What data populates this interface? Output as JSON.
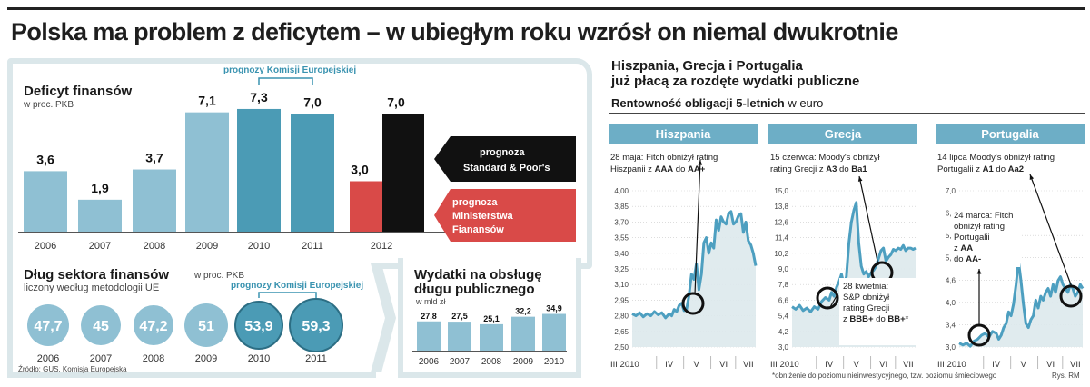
{
  "headline": "Polska ma problem z deficytem – w ubiegłym roku wzrósł on niemal dwukrotnie",
  "deficit": {
    "title": "Deficyt finansów",
    "unit": "w proc. PKB",
    "forecast_label": "prognozy Komisji Europejskiej",
    "legend_sp": [
      "prognoza",
      "Standard & Poor's"
    ],
    "legend_min": [
      "prognoza",
      "Ministerstwa",
      "Fianansów"
    ]
  },
  "debt": {
    "title": "Dług sektora finansów",
    "subtitle": "liczony według metodologii UE",
    "unit": "w proc. PKB",
    "forecast_label": "prognozy Komisji Europejskiej"
  },
  "spend": {
    "title_line1": "Wydatki na obsługę",
    "title_line2": "długu publicznego",
    "unit": "w mld zł"
  },
  "source": "Źródło: GUS, Komisja Europejska",
  "right": {
    "title_line1": "Hiszpania, Grecja i Portugalia",
    "title_line2": "już płacą za rozdęte wydatki publiczne",
    "subtitle_bold": "Rentowność obligacji 5-letnich",
    "subtitle_rest": " w euro"
  },
  "footnote": "*obniżenie do poziomu nieinwestycyjnego, tzw. poziomu śmieciowego",
  "credit": "Rys. RM",
  "colors": {
    "light_blue": "#8fc0d3",
    "ke_blue": "#4b9bb5",
    "black": "#111111",
    "red": "#d94a48",
    "panel_bg": "#dbe7ea",
    "header_blue": "#6daec6"
  },
  "chart_data": [
    {
      "type": "bar",
      "title": "Deficyt finansów",
      "ylabel": "w proc. PKB",
      "categories": [
        "2006",
        "2007",
        "2008",
        "2009",
        "2010",
        "2011",
        "2012"
      ],
      "series": [
        {
          "values": [
            3.6,
            1.9,
            3.7,
            7.1,
            null,
            null,
            null
          ]
        },
        {
          "name": "prognozy Komisji Europejskiej",
          "values": [
            null,
            null,
            null,
            null,
            7.3,
            7.0,
            null
          ]
        },
        {
          "name": "prognoza Ministerstwa Fianansów",
          "values": [
            null,
            null,
            null,
            null,
            null,
            null,
            3.0
          ]
        },
        {
          "name": "prognoza Standard & Poor's",
          "values": [
            null,
            null,
            null,
            null,
            null,
            null,
            7.0
          ]
        }
      ],
      "labels": [
        "3,6",
        "1,9",
        "3,7",
        "7,1",
        "7,3",
        "7,0",
        "3,0",
        "7,0"
      ]
    },
    {
      "type": "bubble",
      "title": "Dług sektora finansów",
      "ylabel": "w proc. PKB",
      "categories": [
        "2006",
        "2007",
        "2008",
        "2009",
        "2010",
        "2011"
      ],
      "values": [
        47.7,
        45,
        47.2,
        51,
        53.9,
        59.3
      ],
      "labels": [
        "47,7",
        "45",
        "47,2",
        "51",
        "53,9",
        "59,3"
      ]
    },
    {
      "type": "bar",
      "title": "Wydatki na obsługę długu publicznego",
      "ylabel": "w mld zł",
      "categories": [
        "2006",
        "2007",
        "2008",
        "2009",
        "2010"
      ],
      "values": [
        27.8,
        27.5,
        25.1,
        32.2,
        34.9
      ],
      "labels": [
        "27,8",
        "27,5",
        "25,1",
        "32,2",
        "34,9"
      ]
    },
    {
      "type": "line",
      "title": "Hiszpania",
      "yticks": [
        "4,00",
        "3,85",
        "3,70",
        "3,55",
        "3,40",
        "3,25",
        "3,10",
        "2,95",
        "2,80",
        "2,65",
        "2,50"
      ],
      "ylim": [
        2.5,
        4.0
      ],
      "xticks": [
        "III 2010",
        "IV",
        "V",
        "VI",
        "VII"
      ],
      "annotation": {
        "before": "28 maja: Fitch obniżył rating",
        "line2": "Hiszpanii z ",
        "from": "AAA",
        "mid": " do ",
        "to": "AA+"
      },
      "x": [
        0,
        3,
        6,
        9,
        12,
        15,
        18,
        21,
        24,
        27,
        30,
        32,
        34,
        36,
        38,
        40,
        42,
        44,
        46,
        48,
        50,
        52,
        54,
        56,
        58,
        60,
        62,
        64,
        66,
        68,
        70,
        72,
        74,
        76,
        78,
        80,
        82,
        84,
        86,
        88,
        90,
        92,
        94,
        96,
        98,
        100
      ],
      "values": [
        2.82,
        2.8,
        2.83,
        2.79,
        2.82,
        2.8,
        2.84,
        2.81,
        2.83,
        2.78,
        2.82,
        2.8,
        2.86,
        2.84,
        2.9,
        2.92,
        2.85,
        2.86,
        3.0,
        3.2,
        3.15,
        3.3,
        3.05,
        3.2,
        3.5,
        3.55,
        3.4,
        3.5,
        3.45,
        3.72,
        3.62,
        3.75,
        3.7,
        3.68,
        3.78,
        3.8,
        3.68,
        3.7,
        3.76,
        3.78,
        3.6,
        3.7,
        3.52,
        3.48,
        3.4,
        3.28
      ]
    },
    {
      "type": "line",
      "title": "Grecja",
      "yticks": [
        "15,0",
        "13,8",
        "12,6",
        "11,4",
        "10,2",
        "9,0",
        "7,8",
        "6,6",
        "5,4",
        "4,2",
        "3,0"
      ],
      "ylim": [
        3.0,
        15.0
      ],
      "xticks": [
        "III 2010",
        "IV",
        "V",
        "VI",
        "VII"
      ],
      "annotation": {
        "before": "15 czerwca: Moody's obniżył",
        "line2": "rating Grecji z ",
        "from": "A3",
        "mid": " do ",
        "to": "Ba1"
      },
      "annotation2": {
        "before": "28 kwietnia:",
        "line2": "S&P obniżył",
        "line3": "rating Grecji",
        "line4_pre": "z ",
        "from": "BBB+",
        "mid": " do ",
        "to": "BB+",
        "suffix": "*"
      },
      "x": [
        0,
        3,
        6,
        9,
        12,
        15,
        18,
        21,
        24,
        27,
        30,
        32,
        34,
        36,
        38,
        40,
        42,
        44,
        46,
        48,
        50,
        52,
        54,
        56,
        58,
        60,
        62,
        64,
        66,
        68,
        70,
        72,
        74,
        76,
        78,
        80,
        82,
        84,
        86,
        88,
        90,
        92,
        94,
        96,
        98,
        100
      ],
      "values": [
        6.1,
        5.9,
        6.2,
        5.8,
        6.0,
        5.7,
        6.1,
        5.9,
        6.5,
        6.8,
        6.6,
        7.2,
        6.9,
        7.6,
        8.0,
        8.6,
        7.8,
        8.4,
        11.0,
        12.6,
        13.5,
        14.1,
        11.0,
        9.2,
        8.6,
        8.8,
        8.4,
        8.7,
        8.9,
        9.2,
        9.8,
        10.4,
        10.6,
        9.6,
        9.9,
        10.1,
        10.5,
        10.4,
        10.6,
        10.5,
        10.8,
        10.4,
        10.6,
        10.6,
        10.5,
        10.6
      ]
    },
    {
      "type": "line",
      "title": "Portugalia",
      "yticks": [
        "7,0",
        "6,4",
        "5,8",
        "5,2",
        "4,6",
        "4,0",
        "3,4",
        "3,0"
      ],
      "ylim": [
        3.0,
        7.0
      ],
      "xticks": [
        "III 2010",
        "IV",
        "V",
        "VI",
        "VII"
      ],
      "annotation": {
        "before": "14 lipca Moody's obniżył rating",
        "line2": "Portugalii z ",
        "from": "A1",
        "mid": " do ",
        "to": "Aa2"
      },
      "annotation2": {
        "line1": "24 marca: Fitch",
        "line2": "obniżył rating",
        "line3": "Portugalii",
        "line4_pre": "z ",
        "from": "AA",
        "line5_pre": "do ",
        "to": "AA-"
      },
      "x": [
        0,
        3,
        6,
        9,
        12,
        15,
        18,
        21,
        24,
        27,
        30,
        32,
        34,
        36,
        38,
        40,
        42,
        44,
        46,
        48,
        50,
        52,
        54,
        56,
        58,
        60,
        62,
        64,
        66,
        68,
        70,
        72,
        74,
        76,
        78,
        80,
        82,
        84,
        86,
        88,
        90,
        92,
        94,
        96,
        98,
        100
      ],
      "values": [
        3.1,
        3.05,
        3.1,
        3.02,
        3.15,
        3.2,
        3.3,
        3.35,
        3.25,
        3.4,
        3.35,
        3.2,
        3.3,
        3.5,
        3.6,
        3.9,
        3.8,
        4.1,
        4.6,
        5.2,
        4.7,
        4.1,
        3.6,
        3.5,
        3.7,
        3.8,
        4.2,
        4.0,
        4.3,
        4.2,
        4.4,
        4.5,
        4.3,
        4.6,
        4.4,
        4.7,
        4.8,
        4.6,
        4.5,
        4.4,
        4.6,
        4.5,
        4.3,
        4.4,
        4.6,
        4.5
      ]
    }
  ]
}
